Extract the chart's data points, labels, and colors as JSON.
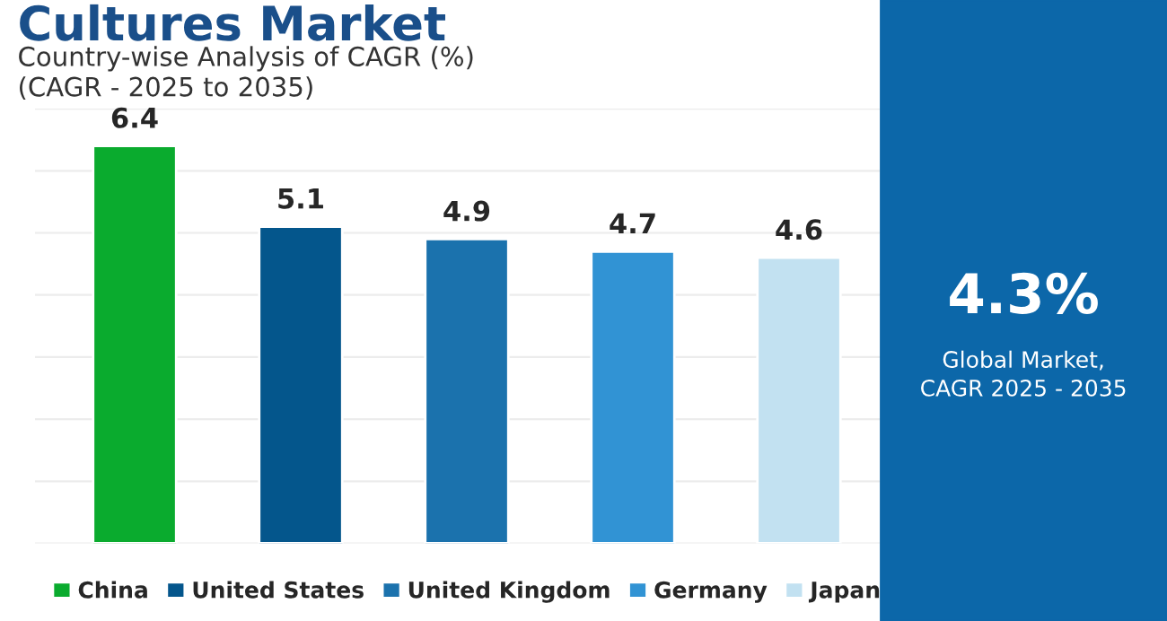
{
  "chart_data": {
    "type": "bar",
    "title": "Cultures Market",
    "subtitle": "Country-wise Analysis of CAGR (%)\n(CAGR - 2025 to 2035)",
    "categories": [
      null,
      null,
      null,
      null,
      null
    ],
    "series": [
      {
        "name": "China",
        "color": "#0aab2e",
        "values": [
          6.4,
          null,
          null,
          null,
          null
        ]
      },
      {
        "name": "United States",
        "color": "#04568c",
        "values": [
          null,
          5.1,
          null,
          null,
          null
        ]
      },
      {
        "name": "United Kingdom",
        "color": "#1b72ad",
        "values": [
          null,
          null,
          4.9,
          null,
          null
        ]
      },
      {
        "name": "Germany",
        "color": "#3193d4",
        "values": [
          null,
          null,
          null,
          4.7,
          null
        ]
      },
      {
        "name": "Japan",
        "color": "#c2e1f1",
        "values": [
          null,
          null,
          null,
          null,
          4.6
        ]
      }
    ],
    "ylim": [
      0,
      7
    ],
    "yticks": [
      {
        "value": 0,
        "label": null
      },
      {
        "value": 1,
        "label": null
      },
      {
        "value": 2,
        "label": null
      },
      {
        "value": 3,
        "label": null
      },
      {
        "value": 4,
        "label": null
      },
      {
        "value": 5,
        "label": null
      },
      {
        "value": 6,
        "label": null
      },
      {
        "value": 7,
        "label": null
      }
    ],
    "grid": "y",
    "data_labels": true,
    "legend": "bottom",
    "stacked": true,
    "annotations": [
      "4.3%",
      "Global Market,\nCAGR 2025 - 2035"
    ]
  }
}
